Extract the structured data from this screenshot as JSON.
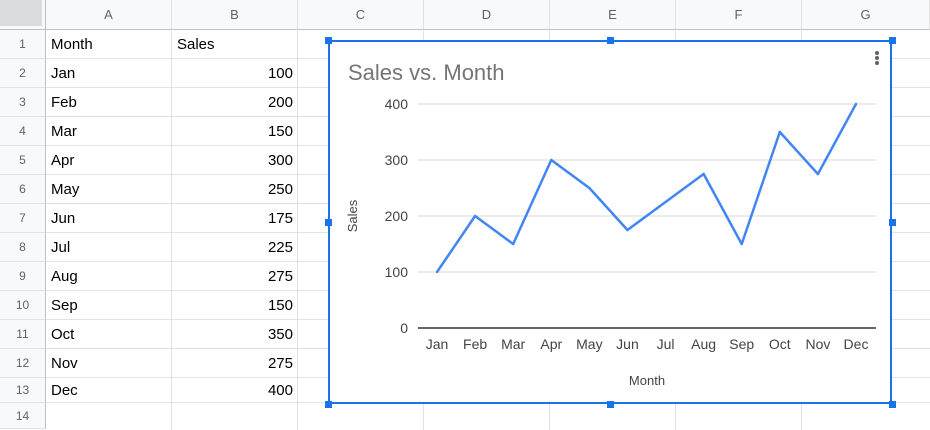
{
  "columns": [
    "A",
    "B",
    "C",
    "D",
    "E",
    "F",
    "G"
  ],
  "rows": [
    "1",
    "2",
    "3",
    "4",
    "5",
    "6",
    "7",
    "8",
    "9",
    "10",
    "11",
    "12",
    "13",
    "14"
  ],
  "header": {
    "month": "Month",
    "sales": "Sales"
  },
  "table": [
    {
      "month": "Jan",
      "sales": "100"
    },
    {
      "month": "Feb",
      "sales": "200"
    },
    {
      "month": "Mar",
      "sales": "150"
    },
    {
      "month": "Apr",
      "sales": "300"
    },
    {
      "month": "May",
      "sales": "250"
    },
    {
      "month": "Jun",
      "sales": "175"
    },
    {
      "month": "Jul",
      "sales": "225"
    },
    {
      "month": "Aug",
      "sales": "275"
    },
    {
      "month": "Sep",
      "sales": "150"
    },
    {
      "month": "Oct",
      "sales": "350"
    },
    {
      "month": "Nov",
      "sales": "275"
    },
    {
      "month": "Dec",
      "sales": "400"
    }
  ],
  "chart_data": {
    "type": "line",
    "title": "Sales vs. Month",
    "xlabel": "Month",
    "ylabel": "Sales",
    "categories": [
      "Jan",
      "Feb",
      "Mar",
      "Apr",
      "May",
      "Jun",
      "Jul",
      "Aug",
      "Sep",
      "Oct",
      "Nov",
      "Dec"
    ],
    "series": [
      {
        "values": [
          100,
          200,
          150,
          300,
          250,
          175,
          225,
          275,
          150,
          350,
          275,
          400
        ]
      }
    ],
    "ylim": [
      0,
      400
    ],
    "yticks": [
      0,
      100,
      200,
      300,
      400
    ],
    "grid": true,
    "legend": "none",
    "line_color": "#4285f4"
  }
}
